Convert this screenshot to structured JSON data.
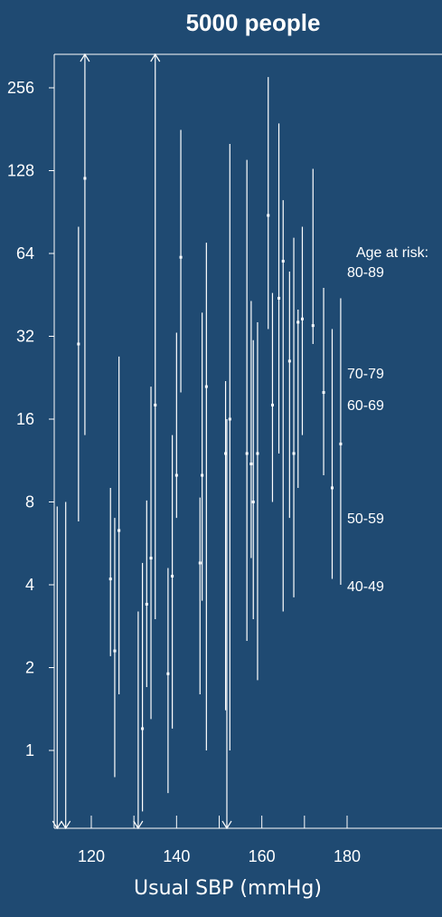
{
  "chart_data": {
    "type": "scatter",
    "title": "5000 people",
    "xlabel": "Usual SBP (mmHg)",
    "ylabel": "",
    "xlim": [
      110,
      200
    ],
    "ylim": [
      0.5,
      400
    ],
    "y_scale": "log2",
    "x_ticks": [
      120,
      140,
      160,
      180
    ],
    "y_ticks": [
      1,
      2,
      4,
      8,
      16,
      32,
      64,
      128,
      256
    ],
    "y_tick_labels": [
      "1",
      "2",
      "4",
      "8",
      "16",
      "32",
      "64",
      "128",
      "256"
    ],
    "x_tick_labels": [
      "120",
      "140",
      "160",
      "180"
    ],
    "legend_title": "Age at risk:",
    "legend_position": "right",
    "groups": [
      "80-89",
      "70-79",
      "60-69",
      "50-59",
      "40-49"
    ],
    "points": [
      {
        "x": 112,
        "y": 0.55,
        "lo": 0.5,
        "hi": 7.7,
        "lo_arrow": true
      },
      {
        "x": 114,
        "y": 0.55,
        "lo": 0.5,
        "hi": 8.0,
        "lo_arrow": true
      },
      {
        "x": 117,
        "y": 30,
        "lo": 6.8,
        "hi": 80
      },
      {
        "x": 118.5,
        "y": 120,
        "lo": 14,
        "hi": 400,
        "hi_arrow": true
      },
      {
        "x": 124.5,
        "y": 4.2,
        "lo": 2.2,
        "hi": 9.0
      },
      {
        "x": 125.5,
        "y": 2.3,
        "lo": 0.8,
        "hi": 7.0
      },
      {
        "x": 126.5,
        "y": 6.3,
        "lo": 1.6,
        "hi": 27
      },
      {
        "x": 131,
        "y": 0.55,
        "lo": 0.5,
        "hi": 3.2,
        "lo_arrow": true
      },
      {
        "x": 132,
        "y": 1.2,
        "lo": 0.6,
        "hi": 4.8
      },
      {
        "x": 133,
        "y": 3.4,
        "lo": 1.7,
        "hi": 8.1
      },
      {
        "x": 134,
        "y": 5.0,
        "lo": 1.3,
        "hi": 21
      },
      {
        "x": 135,
        "y": 18,
        "lo": 3.0,
        "hi": 400,
        "hi_arrow": true
      },
      {
        "x": 138,
        "y": 1.9,
        "lo": 0.7,
        "hi": 4.6
      },
      {
        "x": 139,
        "y": 4.3,
        "lo": 1.2,
        "hi": 14
      },
      {
        "x": 140,
        "y": 10,
        "lo": 7.0,
        "hi": 33
      },
      {
        "x": 141,
        "y": 62,
        "lo": 20,
        "hi": 180
      },
      {
        "x": 145.5,
        "y": 4.8,
        "lo": 1.6,
        "hi": 8.3
      },
      {
        "x": 146,
        "y": 10,
        "lo": 3.5,
        "hi": 39
      },
      {
        "x": 147,
        "y": 21,
        "lo": 1.0,
        "hi": 70
      },
      {
        "x": 151.5,
        "y": 12,
        "lo": 1.4,
        "hi": 22
      },
      {
        "x": 151.8,
        "y": 0.55,
        "lo": 0.5,
        "hi": 16,
        "lo_arrow": true
      },
      {
        "x": 152.5,
        "y": 16,
        "lo": 1.0,
        "hi": 160
      },
      {
        "x": 156.5,
        "y": 12,
        "lo": 2.5,
        "hi": 140
      },
      {
        "x": 157.5,
        "y": 11,
        "lo": 5.0,
        "hi": 43
      },
      {
        "x": 158,
        "y": 8.0,
        "lo": 3.0,
        "hi": 31
      },
      {
        "x": 159,
        "y": 12,
        "lo": 1.8,
        "hi": 36
      },
      {
        "x": 161.5,
        "y": 88,
        "lo": 34,
        "hi": 280
      },
      {
        "x": 162.5,
        "y": 18,
        "lo": 8.0,
        "hi": 46
      },
      {
        "x": 164,
        "y": 44,
        "lo": 12,
        "hi": 190
      },
      {
        "x": 165,
        "y": 60,
        "lo": 3.2,
        "hi": 100
      },
      {
        "x": 166.5,
        "y": 26,
        "lo": 7.0,
        "hi": 55
      },
      {
        "x": 167.5,
        "y": 12,
        "lo": 3.6,
        "hi": 73
      },
      {
        "x": 168.5,
        "y": 36,
        "lo": 9.0,
        "hi": 40
      },
      {
        "x": 169.5,
        "y": 37,
        "lo": 14,
        "hi": 80
      },
      {
        "x": 172,
        "y": 35,
        "lo": 30,
        "hi": 130
      },
      {
        "x": 174.5,
        "y": 20,
        "lo": 10,
        "hi": 48
      },
      {
        "x": 176.5,
        "y": 9.0,
        "lo": 4.2,
        "hi": 34
      },
      {
        "x": 178.5,
        "y": 13,
        "lo": 4.0,
        "hi": 44
      }
    ]
  },
  "legend": {
    "title": "Age at risk:",
    "items": [
      "80-89",
      "70-79",
      "60-69",
      "50-59",
      "40-49"
    ]
  }
}
